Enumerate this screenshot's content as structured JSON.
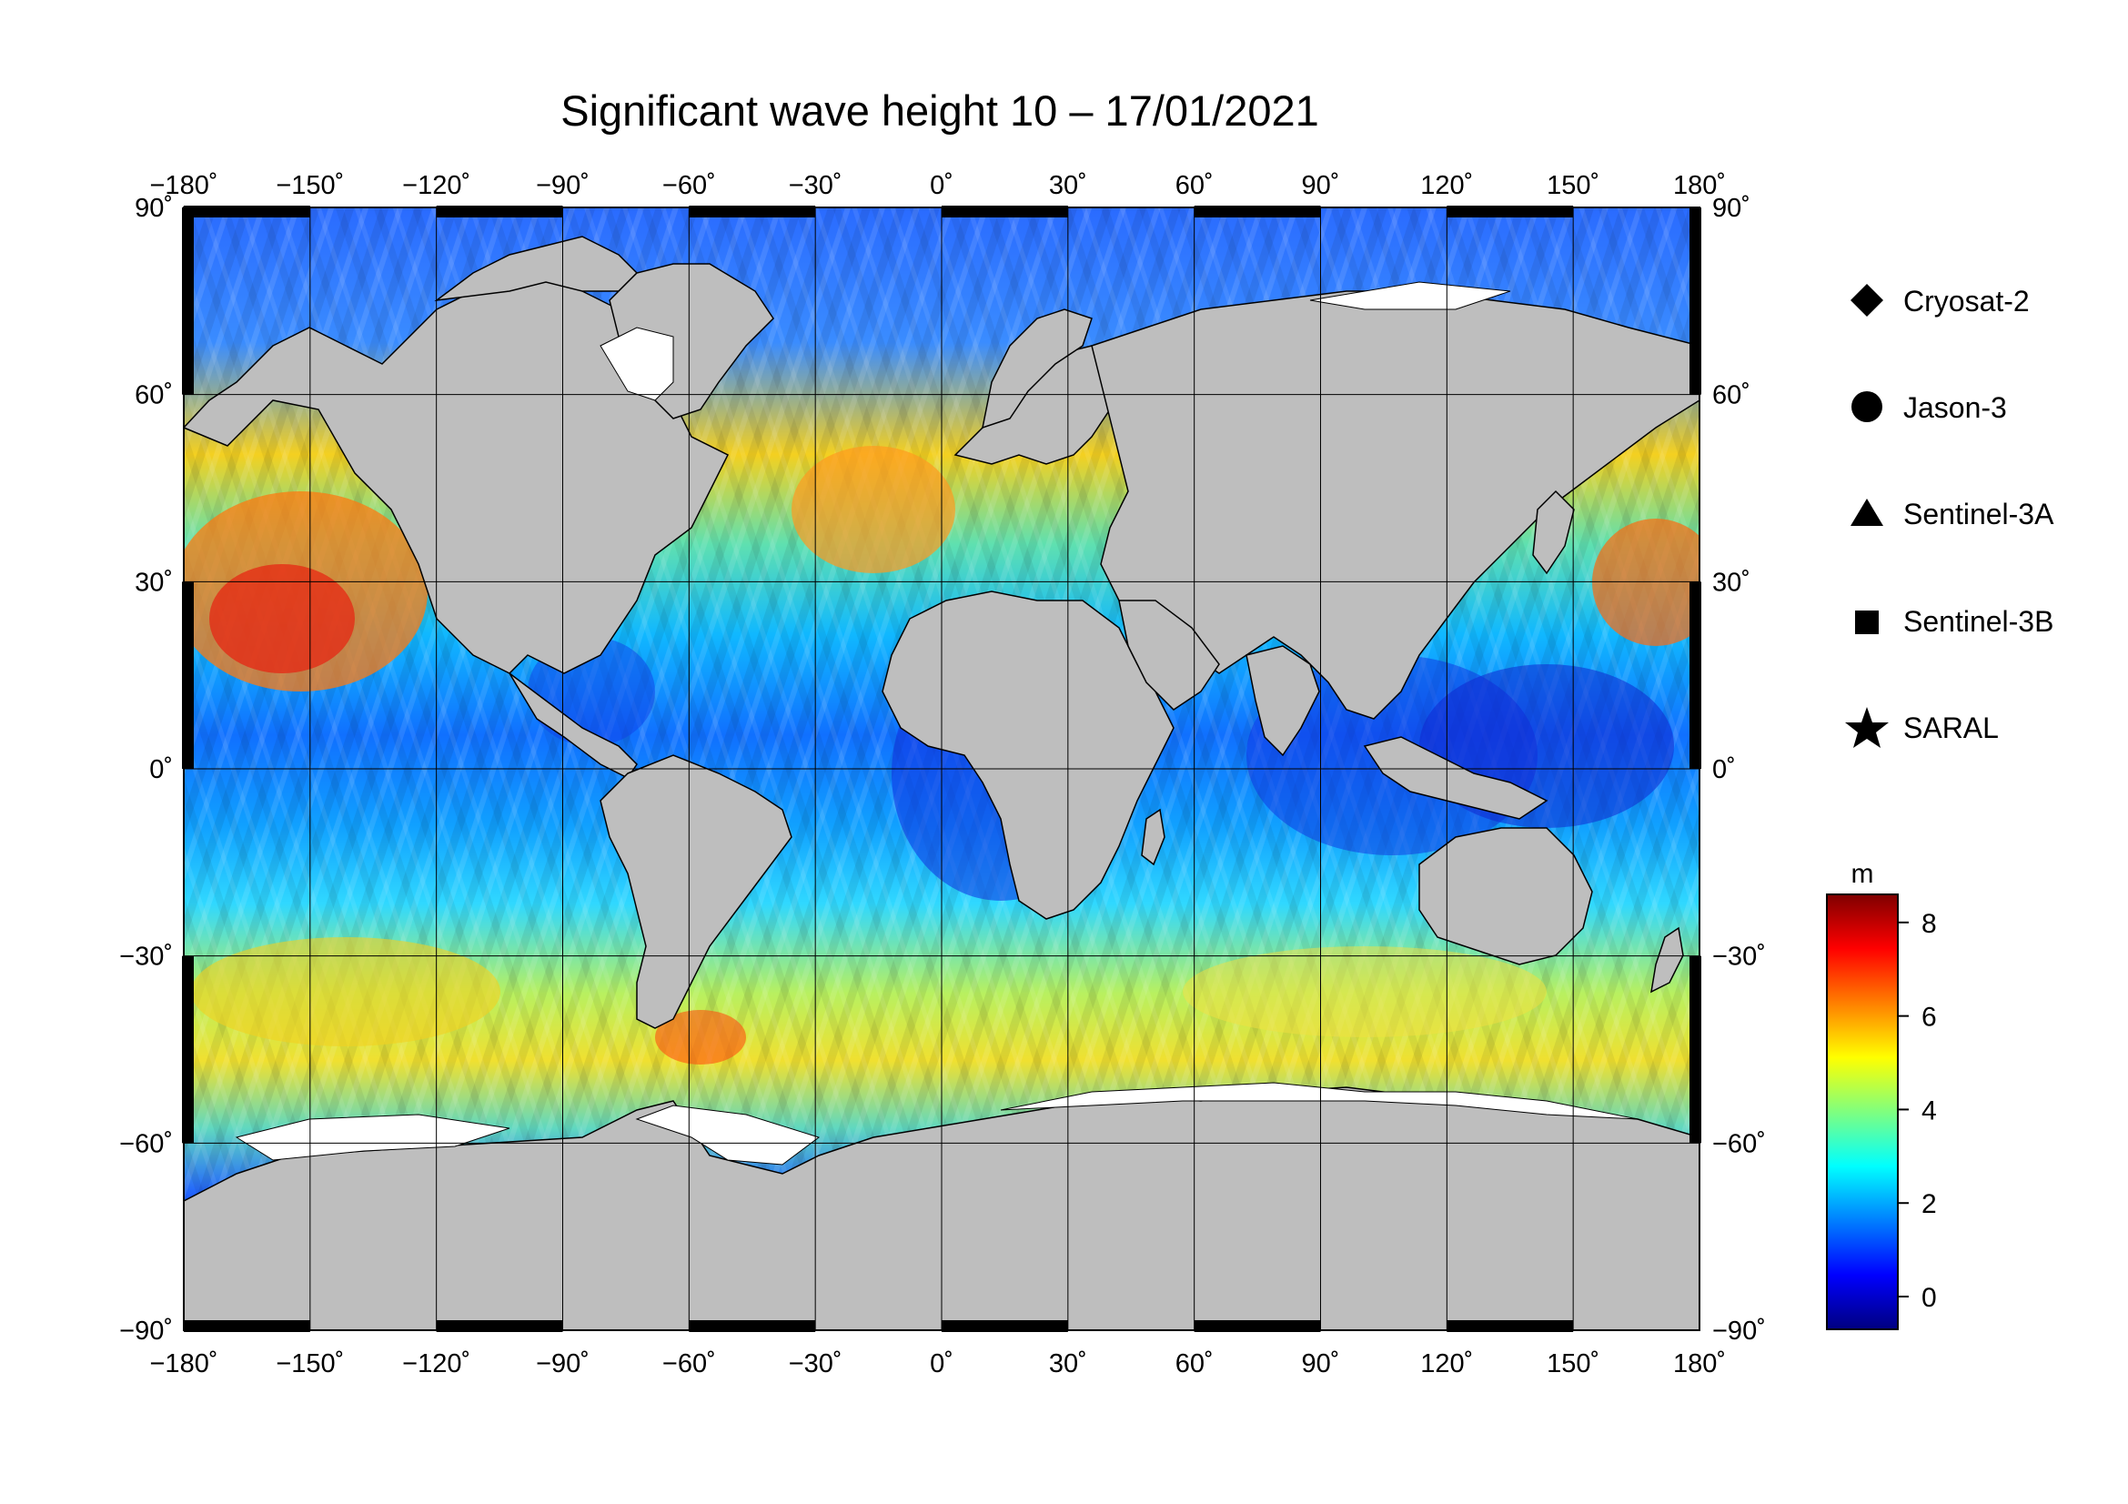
{
  "title": "Significant wave height 10 – 17/01/2021",
  "lon_ticks": [
    "−180˚",
    "−150˚",
    "−120˚",
    "−90˚",
    "−60˚",
    "−30˚",
    "0˚",
    "30˚",
    "60˚",
    "90˚",
    "120˚",
    "150˚",
    "180˚"
  ],
  "lat_ticks_left": [
    "90˚",
    "60˚",
    "30˚",
    "0˚",
    "−30˚",
    "−60˚",
    "−90˚"
  ],
  "lat_ticks_right": [
    "90˚",
    "60˚",
    "30˚",
    "0˚",
    "−30˚",
    "−60˚",
    "−90˚"
  ],
  "lat_values": [
    90,
    60,
    30,
    0,
    -30,
    -60,
    -90
  ],
  "lon_values": [
    -180,
    -150,
    -120,
    -90,
    -60,
    -30,
    0,
    30,
    60,
    90,
    120,
    150,
    180
  ],
  "legend": [
    {
      "symbol": "diamond",
      "label": "Cryosat-2"
    },
    {
      "symbol": "circle",
      "label": "Jason-3"
    },
    {
      "symbol": "triangle",
      "label": "Sentinel-3A"
    },
    {
      "symbol": "square",
      "label": "Sentinel-3B"
    },
    {
      "symbol": "star",
      "label": "SARAL"
    }
  ],
  "colorbar": {
    "unit": "m",
    "range": [
      -0.7,
      8.6
    ],
    "ticks": [
      "8",
      "6",
      "4",
      "2",
      "0"
    ],
    "tick_values": [
      8,
      6,
      4,
      2,
      0
    ],
    "colors": [
      "#00007f",
      "#0000ff",
      "#007fff",
      "#00ffff",
      "#7fff7f",
      "#ffff00",
      "#ff7f00",
      "#ff0000",
      "#7f0000"
    ]
  },
  "map": {
    "ocean_colors": {
      "low": "#1030e0",
      "mid": "#00c8ff",
      "high": "#ffdd00",
      "extreme": "#e01010"
    },
    "land_color": "#bebebe",
    "ice_color": "#ffffff"
  }
}
